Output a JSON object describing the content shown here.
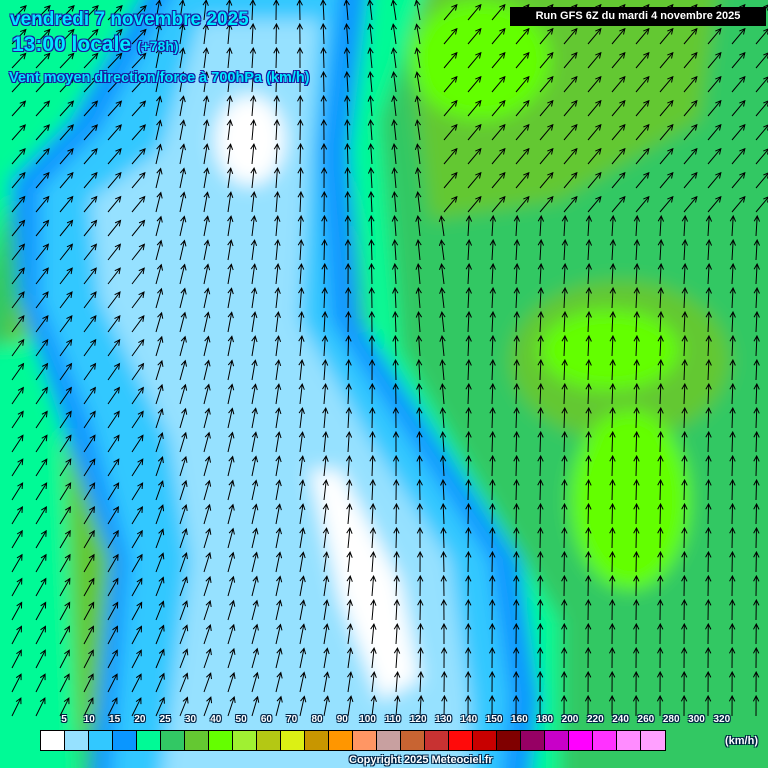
{
  "header": {
    "date": "vendredi 7 novembre 2025",
    "time": "13:00 locale",
    "lead": "(+78h)",
    "variable": "Vent moyen direction/force à 700hPa (km/h)",
    "run": "Run GFS 6Z du mardi 4 novembre 2025"
  },
  "legend": {
    "labels": [
      "5",
      "10",
      "15",
      "20",
      "25",
      "30",
      "40",
      "50",
      "60",
      "70",
      "80",
      "90",
      "100",
      "110",
      "120",
      "130",
      "140",
      "150",
      "160",
      "180",
      "200",
      "220",
      "240",
      "260",
      "280",
      "300",
      "320"
    ],
    "colors": [
      "#ffffff",
      "#96e1ff",
      "#32c8ff",
      "#0a96ff",
      "#00fa96",
      "#32c864",
      "#64c832",
      "#64ff00",
      "#a0f032",
      "#b4c814",
      "#dcf014",
      "#c89600",
      "#ff9600",
      "#ff9664",
      "#c8a0a0",
      "#c86432",
      "#c83232",
      "#ff0a0a",
      "#c80000",
      "#800000",
      "#960064",
      "#c800c8",
      "#ff00ff",
      "#ff32ff",
      "#ff8cff",
      "#ffa0ff",
      "#ffffff"
    ],
    "unit": "(km/h)"
  },
  "footer": {
    "copyright": "Copyright 2025 Meteociel.fr"
  }
}
